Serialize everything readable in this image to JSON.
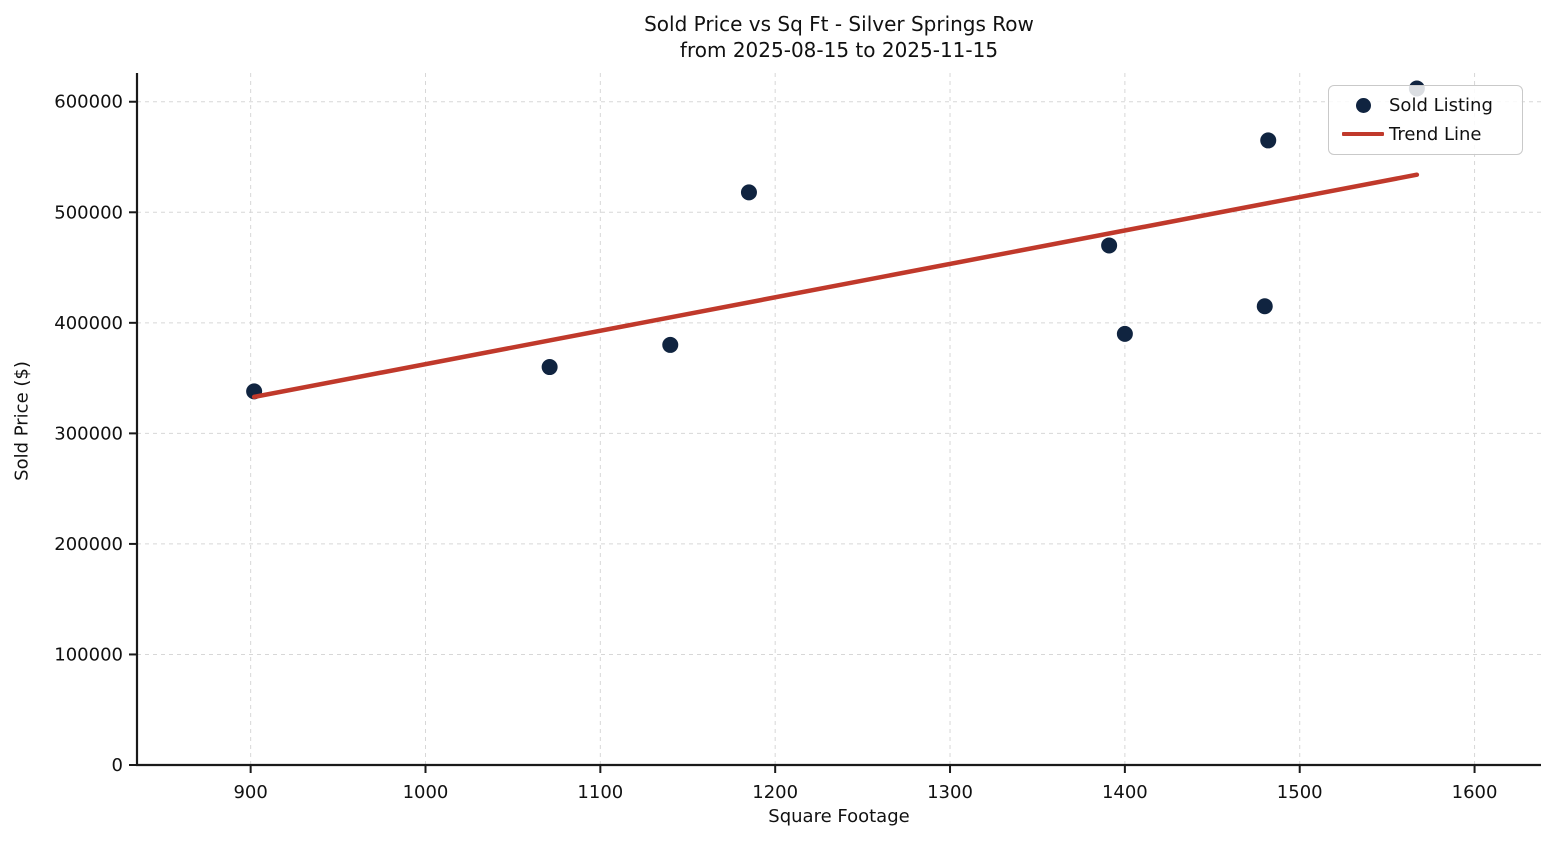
{
  "figure": {
    "title_line1": "Sold Price vs Sq Ft - Silver Springs Row",
    "title_line2": "from 2025-08-15 to 2025-11-15",
    "xlabel": "Square Footage",
    "ylabel": "Sold Price ($)"
  },
  "legend": {
    "position": "upper right",
    "items": [
      {
        "label": "Sold Listing",
        "marker": "dot",
        "color": "#102440"
      },
      {
        "label": "Trend Line",
        "marker": "line",
        "color": "#c0392b"
      }
    ]
  },
  "style": {
    "point_color": "#102440",
    "trend_color": "#c0392b",
    "grid_color": "#d7d7d7",
    "spine_color": "#1a1a1a",
    "text_color": "#111111",
    "background": "#ffffff"
  },
  "chart_data": {
    "type": "scatter",
    "title": "Sold Price vs Sq Ft - Silver Springs Row from 2025-08-15 to 2025-11-15",
    "xlabel": "Square Footage",
    "ylabel": "Sold Price ($)",
    "xlim": [
      835,
      1638
    ],
    "ylim": [
      0,
      626000
    ],
    "xticks": [
      900,
      1000,
      1100,
      1200,
      1300,
      1400,
      1500,
      1600
    ],
    "yticks": [
      0,
      100000,
      200000,
      300000,
      400000,
      500000,
      600000
    ],
    "grid": true,
    "legend_position": "upper right",
    "series": [
      {
        "name": "Sold Listing",
        "type": "scatter",
        "color": "#102440",
        "points": [
          {
            "x": 902,
            "y": 338000
          },
          {
            "x": 1071,
            "y": 360000
          },
          {
            "x": 1140,
            "y": 380000
          },
          {
            "x": 1185,
            "y": 518000
          },
          {
            "x": 1391,
            "y": 470000
          },
          {
            "x": 1400,
            "y": 390000
          },
          {
            "x": 1480,
            "y": 415000
          },
          {
            "x": 1482,
            "y": 565000
          },
          {
            "x": 1567,
            "y": 612000
          }
        ]
      },
      {
        "name": "Trend Line",
        "type": "line",
        "color": "#c0392b",
        "points": [
          {
            "x": 902,
            "y": 333000
          },
          {
            "x": 1567,
            "y": 534000
          }
        ]
      }
    ]
  }
}
